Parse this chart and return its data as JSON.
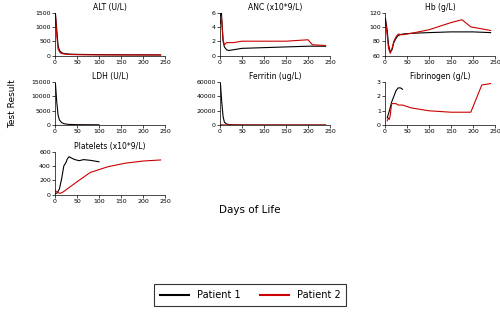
{
  "ALT": {
    "title": "ALT (U/L)",
    "p1_x": [
      1,
      4,
      7,
      10,
      15,
      20,
      30,
      50,
      100,
      150,
      200,
      240
    ],
    "p1_y": [
      1480,
      900,
      350,
      180,
      100,
      70,
      50,
      40,
      30,
      25,
      22,
      20
    ],
    "p2_x": [
      1,
      4,
      7,
      12,
      20,
      35,
      60,
      100,
      150,
      200,
      240
    ],
    "p2_y": [
      1380,
      700,
      220,
      90,
      55,
      35,
      25,
      22,
      20,
      20,
      20
    ],
    "ylim": [
      0,
      1500
    ],
    "yticks": [
      0,
      500,
      1000,
      1500
    ]
  },
  "ANC": {
    "title": "ANC (x10*9/L)",
    "p1_x": [
      1,
      3,
      5,
      7,
      10,
      15,
      20,
      30,
      50,
      100,
      150,
      200,
      240
    ],
    "p1_y": [
      5.5,
      6.2,
      4.2,
      2.0,
      1.2,
      0.8,
      0.7,
      0.8,
      1.0,
      1.1,
      1.2,
      1.3,
      1.3
    ],
    "p2_x": [
      1,
      3,
      5,
      7,
      10,
      15,
      20,
      30,
      50,
      100,
      150,
      200,
      210,
      240
    ],
    "p2_y": [
      4.5,
      5.5,
      3.8,
      2.2,
      1.5,
      1.8,
      1.8,
      1.8,
      2.0,
      2.0,
      2.0,
      2.2,
      1.5,
      1.4
    ],
    "ylim": [
      0,
      6
    ],
    "yticks": [
      0,
      2,
      4,
      6
    ]
  },
  "Hb": {
    "title": "Hb (g/L)",
    "p1_x": [
      1,
      5,
      8,
      12,
      16,
      20,
      25,
      30,
      40,
      60,
      100,
      150,
      200,
      240
    ],
    "p1_y": [
      112,
      95,
      75,
      65,
      68,
      78,
      84,
      88,
      90,
      91,
      92,
      93,
      93,
      92
    ],
    "p2_x": [
      1,
      5,
      8,
      12,
      16,
      20,
      25,
      30,
      40,
      60,
      100,
      150,
      175,
      195,
      240
    ],
    "p2_y": [
      108,
      88,
      70,
      63,
      70,
      80,
      86,
      90,
      89,
      91,
      96,
      106,
      110,
      100,
      95
    ],
    "ylim": [
      60,
      120
    ],
    "yticks": [
      60,
      80,
      100,
      120
    ]
  },
  "LDH": {
    "title": "LDH (U/L)",
    "p1_x": [
      1,
      4,
      7,
      10,
      15,
      20,
      30,
      50,
      100
    ],
    "p1_y": [
      14500,
      8000,
      3500,
      1800,
      900,
      500,
      250,
      150,
      100
    ],
    "p2_x": [
      1,
      5,
      10,
      20,
      50,
      100
    ],
    "p2_y": [
      180,
      180,
      180,
      180,
      180,
      180
    ],
    "ylim": [
      0,
      15000
    ],
    "yticks": [
      0,
      5000,
      10000,
      15000
    ]
  },
  "Ferritin": {
    "title": "Ferritin (ug/L)",
    "p1_x": [
      1,
      4,
      7,
      10,
      15,
      20,
      30,
      50,
      100,
      150,
      200,
      240
    ],
    "p1_y": [
      58000,
      32000,
      12000,
      4000,
      1500,
      800,
      400,
      200,
      100,
      80,
      70,
      60
    ],
    "p2_x": [
      1,
      5,
      10,
      20,
      50,
      100,
      150,
      200,
      240
    ],
    "p2_y": [
      500,
      350,
      250,
      150,
      100,
      80,
      70,
      65,
      60
    ],
    "ylim": [
      0,
      60000
    ],
    "yticks": [
      0,
      20000,
      40000,
      60000
    ]
  },
  "Fibrinogen": {
    "title": "Fibrinogen (g/L)",
    "p1_x": [
      5,
      10,
      15,
      20,
      25,
      30,
      35,
      40
    ],
    "p1_y": [
      0.5,
      1.0,
      1.6,
      2.0,
      2.4,
      2.6,
      2.6,
      2.5
    ],
    "p2_x": [
      5,
      8,
      10,
      12,
      15,
      20,
      25,
      30,
      40,
      60,
      100,
      150,
      175,
      195,
      220,
      240
    ],
    "p2_y": [
      0.3,
      0.5,
      0.4,
      0.7,
      1.5,
      1.5,
      1.5,
      1.4,
      1.4,
      1.2,
      1.0,
      0.9,
      0.9,
      0.9,
      2.8,
      2.9
    ],
    "ylim": [
      0,
      3
    ],
    "yticks": [
      0,
      1,
      2,
      3
    ]
  },
  "Platelets": {
    "title": "Platelets (x10*9/L)",
    "p1_x": [
      1,
      5,
      10,
      15,
      20,
      25,
      28,
      32,
      38,
      45,
      55,
      65,
      80,
      100
    ],
    "p1_y": [
      15,
      25,
      80,
      220,
      400,
      450,
      500,
      530,
      510,
      490,
      475,
      490,
      480,
      460
    ],
    "p2_x": [
      1,
      5,
      10,
      15,
      20,
      30,
      50,
      80,
      120,
      160,
      200,
      240
    ],
    "p2_y": [
      55,
      35,
      20,
      25,
      45,
      90,
      180,
      310,
      390,
      440,
      470,
      485
    ],
    "ylim": [
      0,
      600
    ],
    "yticks": [
      0,
      200,
      400,
      600
    ]
  },
  "p1_color": "#000000",
  "p2_color": "#cc0000",
  "xlabel": "Days of Life",
  "ylabel": "Test Result",
  "xticks": [
    0,
    50,
    100,
    150,
    200,
    250
  ],
  "xlim": [
    0,
    250
  ],
  "legend_p1": "Patient 1",
  "legend_p2": "Patient 2"
}
